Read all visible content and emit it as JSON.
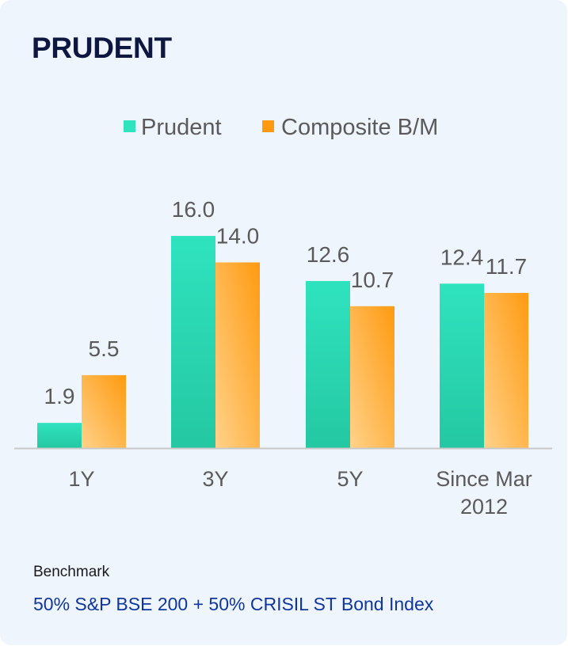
{
  "title": "PRUDENT",
  "benchmark": {
    "label": "Benchmark",
    "value": "50% S&P BSE 200 + 50% CRISIL ST Bond Index"
  },
  "colors": {
    "prudent_top": "#2fe3bf",
    "prudent_bottom": "#24c8a2",
    "composite_light": "#ffd28a",
    "composite_dark": "#ff9a10",
    "title": "#0d1740",
    "benchmark_value": "#10369a",
    "axis": "#c9c9c9",
    "text": "#5a5a5a"
  },
  "chart_data": {
    "type": "bar",
    "categories": [
      "1Y",
      "3Y",
      "5Y",
      "Since Mar 2012"
    ],
    "category_lines": [
      [
        "1Y"
      ],
      [
        "3Y"
      ],
      [
        "5Y"
      ],
      [
        "Since Mar",
        "2012"
      ]
    ],
    "series": [
      {
        "name": "Prudent",
        "values": [
          1.9,
          16.0,
          12.6,
          12.4
        ],
        "labels": [
          "1.9",
          "16.0",
          "12.6",
          "12.4"
        ]
      },
      {
        "name": "Composite B/M",
        "values": [
          5.5,
          14.0,
          10.7,
          11.7
        ],
        "labels": [
          "5.5",
          "14.0",
          "10.7",
          "11.7"
        ]
      }
    ],
    "legend_position": "top-center",
    "ylim": [
      0,
      16
    ],
    "grid": false
  }
}
